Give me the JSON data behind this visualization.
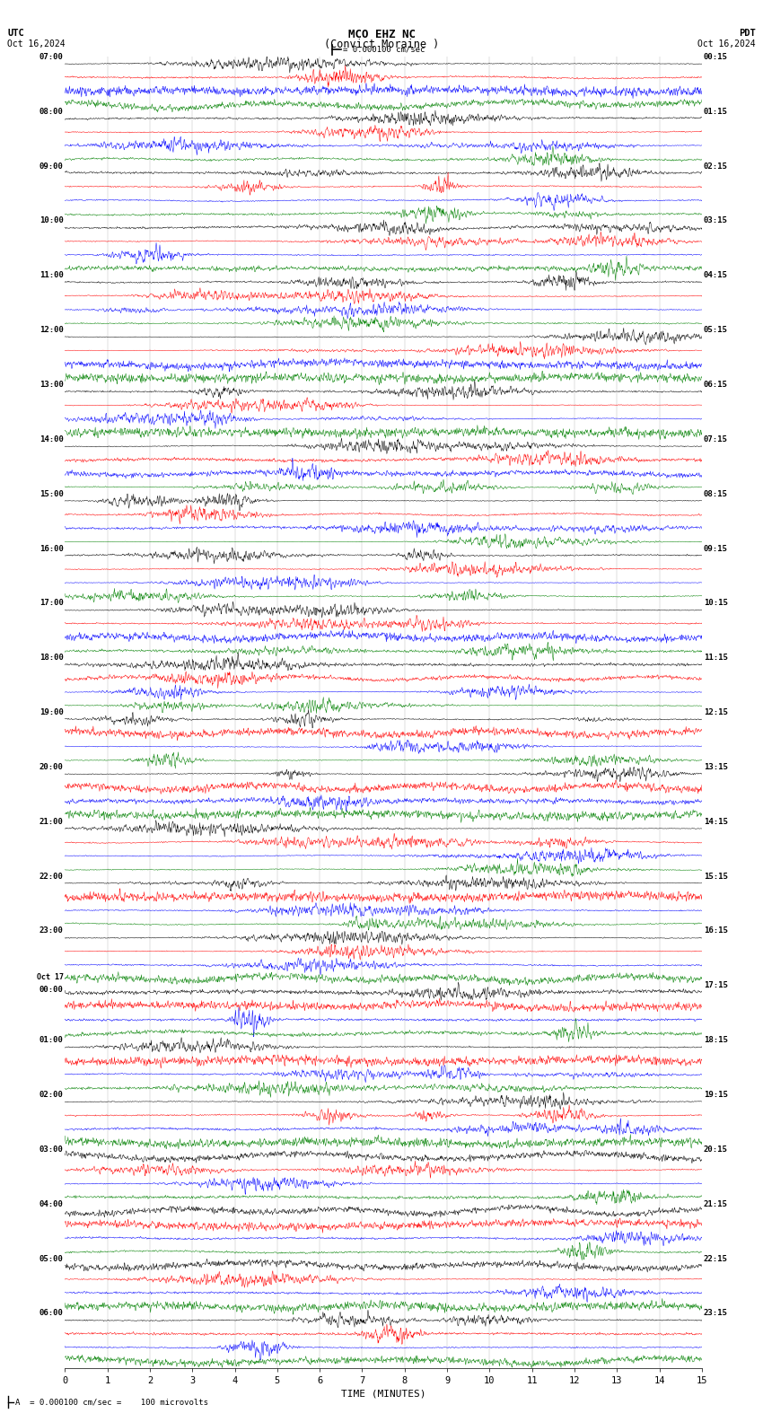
{
  "title_line1": "MCO EHZ NC",
  "title_line2": "(Convict Moraine )",
  "scale_label": "= 0.000100 cm/sec",
  "left_label_top": "UTC",
  "left_label_date": "Oct 16,2024",
  "right_label_top": "PDT",
  "right_label_date": "Oct 16,2024",
  "bottom_label": "TIME (MINUTES)",
  "bottom_note": "A  = 0.000100 cm/sec =    100 microvolts",
  "bg_color": "#ffffff",
  "colors": [
    "black",
    "red",
    "blue",
    "green"
  ],
  "utc_labels": [
    "07:00",
    "08:00",
    "09:00",
    "10:00",
    "11:00",
    "12:00",
    "13:00",
    "14:00",
    "15:00",
    "16:00",
    "17:00",
    "18:00",
    "19:00",
    "20:00",
    "21:00",
    "22:00",
    "23:00",
    "Oct 17\n00:00",
    "01:00",
    "02:00",
    "03:00",
    "04:00",
    "05:00",
    "06:00"
  ],
  "pdt_labels": [
    "00:15",
    "01:15",
    "02:15",
    "03:15",
    "04:15",
    "05:15",
    "06:15",
    "07:15",
    "08:15",
    "09:15",
    "10:15",
    "11:15",
    "12:15",
    "13:15",
    "14:15",
    "15:15",
    "16:15",
    "17:15",
    "18:15",
    "19:15",
    "20:15",
    "21:15",
    "22:15",
    "23:15"
  ],
  "n_hour_groups": 24,
  "traces_per_group": 4,
  "n_minutes": 15,
  "n_points": 1800,
  "seed": 42
}
